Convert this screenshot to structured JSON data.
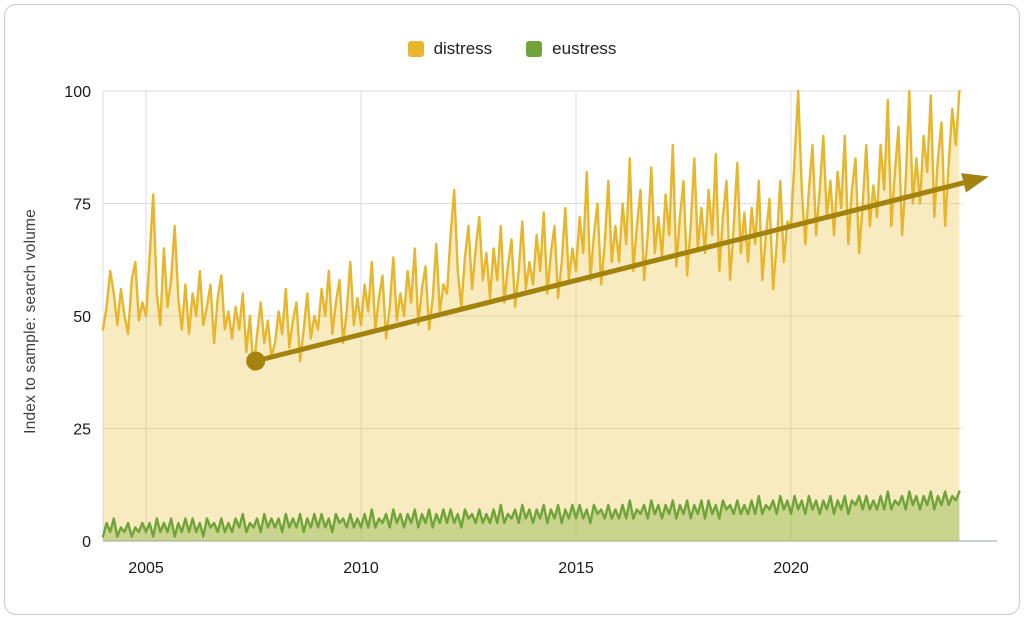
{
  "legend": {
    "items": [
      {
        "label": "distress",
        "color": "#E8B62C"
      },
      {
        "label": "eustress",
        "color": "#71A33B"
      }
    ]
  },
  "y_axis_label": "Index to sample: search volume",
  "chart_data": {
    "type": "area",
    "title": "",
    "xlabel": "",
    "ylabel": "Index to sample: search volume",
    "x_start": 2004,
    "x_end": 2024,
    "x_step": "monthly",
    "ylim": [
      0,
      100
    ],
    "yticks": [
      0,
      25,
      50,
      75,
      100
    ],
    "xticks": [
      2005,
      2010,
      2015,
      2020
    ],
    "grid": true,
    "legend_position": "top",
    "series": [
      {
        "name": "distress",
        "color": "#E8B62C",
        "fill": "#EDC23F",
        "fill_opacity": 0.33,
        "values": [
          47,
          52,
          60,
          55,
          48,
          56,
          50,
          46,
          58,
          62,
          49,
          53,
          50,
          63,
          77,
          55,
          48,
          65,
          52,
          58,
          70,
          54,
          47,
          57,
          46,
          55,
          50,
          60,
          48,
          52,
          57,
          44,
          54,
          59,
          47,
          51,
          45,
          52,
          47,
          55,
          42,
          50,
          38,
          46,
          53,
          44,
          49,
          41,
          44,
          51,
          46,
          56,
          43,
          49,
          53,
          40,
          47,
          55,
          45,
          50,
          47,
          56,
          50,
          60,
          46,
          53,
          58,
          44,
          51,
          62,
          48,
          54,
          48,
          57,
          51,
          62,
          47,
          54,
          59,
          45,
          52,
          63,
          49,
          55,
          50,
          60,
          53,
          65,
          48,
          56,
          61,
          47,
          54,
          66,
          51,
          57,
          55,
          68,
          78,
          60,
          52,
          63,
          70,
          56,
          65,
          72,
          58,
          64,
          54,
          65,
          58,
          70,
          53,
          61,
          67,
          52,
          60,
          71,
          56,
          62,
          57,
          68,
          60,
          73,
          55,
          64,
          70,
          54,
          62,
          74,
          58,
          65,
          60,
          72,
          64,
          82,
          58,
          68,
          75,
          57,
          66,
          80,
          62,
          70,
          62,
          75,
          66,
          85,
          60,
          70,
          78,
          58,
          68,
          83,
          64,
          72,
          63,
          77,
          68,
          88,
          61,
          72,
          80,
          59,
          70,
          85,
          65,
          74,
          64,
          78,
          68,
          86,
          60,
          72,
          80,
          58,
          70,
          84,
          64,
          73,
          62,
          74,
          66,
          80,
          58,
          68,
          76,
          56,
          66,
          80,
          62,
          71,
          70,
          85,
          100,
          78,
          66,
          78,
          88,
          68,
          78,
          90,
          72,
          80,
          68,
          82,
          74,
          90,
          66,
          78,
          85,
          64,
          75,
          88,
          70,
          79,
          72,
          88,
          78,
          98,
          70,
          82,
          92,
          68,
          80,
          100,
          75,
          85,
          75,
          90,
          82,
          99,
          72,
          85,
          93,
          70,
          84,
          96,
          88,
          100
        ]
      },
      {
        "name": "eustress",
        "color": "#71A33B",
        "fill": "#8FBA4E",
        "fill_opacity": 0.45,
        "values": [
          1,
          4,
          2,
          5,
          1,
          3,
          2,
          4,
          1,
          3,
          2,
          4,
          2,
          4,
          1,
          5,
          2,
          4,
          2,
          5,
          1,
          4,
          2,
          5,
          2,
          5,
          2,
          4,
          1,
          5,
          3,
          4,
          2,
          5,
          2,
          4,
          2,
          5,
          3,
          6,
          2,
          4,
          3,
          5,
          2,
          6,
          3,
          5,
          3,
          5,
          2,
          6,
          3,
          5,
          3,
          6,
          2,
          5,
          3,
          6,
          3,
          6,
          3,
          5,
          2,
          6,
          4,
          5,
          3,
          6,
          3,
          5,
          3,
          6,
          3,
          7,
          3,
          5,
          4,
          6,
          3,
          7,
          4,
          6,
          3,
          6,
          4,
          7,
          3,
          6,
          4,
          7,
          3,
          6,
          4,
          7,
          4,
          7,
          4,
          6,
          3,
          7,
          5,
          6,
          4,
          7,
          4,
          6,
          4,
          7,
          4,
          8,
          4,
          6,
          5,
          7,
          4,
          8,
          5,
          7,
          4,
          7,
          5,
          8,
          4,
          7,
          5,
          8,
          4,
          7,
          5,
          8,
          5,
          8,
          5,
          7,
          4,
          8,
          6,
          7,
          5,
          8,
          5,
          7,
          5,
          8,
          5,
          9,
          5,
          7,
          6,
          8,
          5,
          9,
          6,
          8,
          5,
          8,
          6,
          9,
          5,
          8,
          6,
          9,
          5,
          8,
          6,
          9,
          5,
          9,
          6,
          8,
          5,
          9,
          7,
          8,
          6,
          9,
          6,
          8,
          6,
          9,
          6,
          10,
          6,
          8,
          7,
          9,
          6,
          10,
          7,
          9,
          6,
          10,
          7,
          9,
          6,
          10,
          7,
          9,
          6,
          9,
          7,
          10,
          6,
          9,
          7,
          10,
          6,
          9,
          8,
          10,
          7,
          10,
          7,
          9,
          7,
          10,
          7,
          11,
          7,
          9,
          8,
          10,
          7,
          11,
          8,
          10,
          7,
          10,
          8,
          11,
          7,
          10,
          8,
          11,
          8,
          10,
          9,
          11
        ]
      }
    ],
    "annotation": {
      "type": "trend-arrow",
      "color": "#A3830E",
      "from": {
        "x": 2007.55,
        "y": 40
      },
      "to": {
        "x": 2024.6,
        "y": 81
      }
    }
  }
}
